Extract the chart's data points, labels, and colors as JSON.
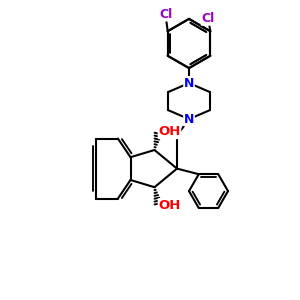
{
  "background_color": "#ffffff",
  "bond_color": "#000000",
  "bond_width": 1.5,
  "atom_colors": {
    "N": "#0000ff",
    "O": "#ff0000",
    "Cl": "#9900cc",
    "C": "#000000"
  },
  "font_size_atom": 8.5,
  "scale": 1.0
}
